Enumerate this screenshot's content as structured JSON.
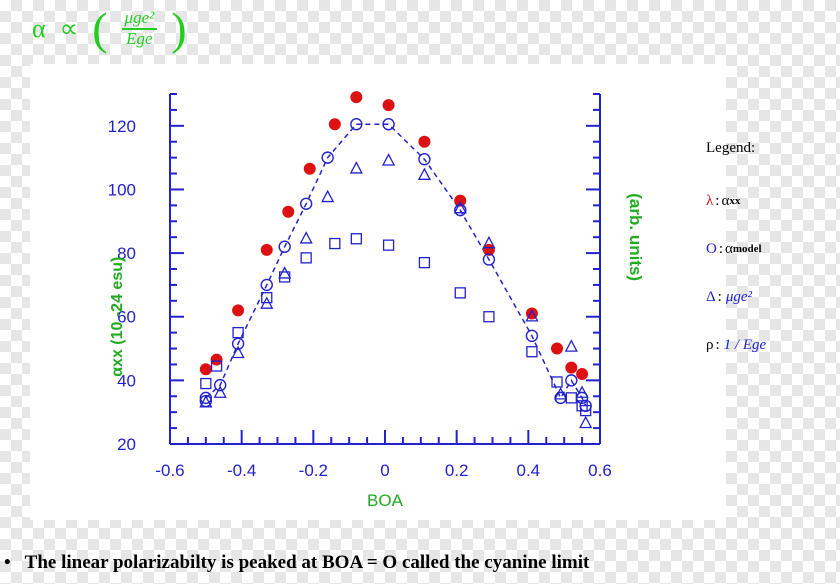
{
  "formula": {
    "lhs": "α",
    "prop": "∝",
    "numerator": "μge²",
    "denominator": "Ege"
  },
  "chart_data": {
    "type": "scatter",
    "xlabel": "BOA",
    "ylabel_left": "αxx (10  -24 esu)",
    "ylabel_right": "(arb. units)",
    "xlim": [
      -0.6,
      0.6
    ],
    "ylim": [
      20,
      130
    ],
    "xticks": [
      -0.6,
      -0.4,
      -0.2,
      0,
      0.2,
      0.4,
      0.6
    ],
    "yticks": [
      20,
      40,
      60,
      80,
      100,
      120
    ],
    "xtick_labels": [
      "-0.6",
      "-0.4",
      "-0.2",
      "0",
      "0.2",
      "0.4",
      "0.6"
    ],
    "ytick_labels": [
      "20",
      "40",
      "60",
      "80",
      "100",
      "120"
    ],
    "grid": false,
    "series": [
      {
        "name": "αxx",
        "symbol": "filled-circle",
        "color": "#dd1111",
        "points": [
          [
            -0.5,
            43.5
          ],
          [
            -0.47,
            46.5
          ],
          [
            -0.41,
            62
          ],
          [
            -0.33,
            81
          ],
          [
            -0.27,
            93
          ],
          [
            -0.21,
            106.5
          ],
          [
            -0.14,
            120.5
          ],
          [
            -0.08,
            129
          ],
          [
            0.01,
            126.5
          ],
          [
            0.11,
            115
          ],
          [
            0.21,
            96.5
          ],
          [
            0.29,
            81
          ],
          [
            0.41,
            61
          ],
          [
            0.48,
            50
          ],
          [
            0.52,
            44
          ],
          [
            0.55,
            42
          ]
        ]
      },
      {
        "name": "αmodel",
        "symbol": "open-circle",
        "color": "#2222cc",
        "line": "dashed",
        "points": [
          [
            -0.5,
            34.5
          ],
          [
            -0.5,
            33.5
          ],
          [
            -0.46,
            38.5
          ],
          [
            -0.41,
            51.5
          ],
          [
            -0.33,
            70
          ],
          [
            -0.28,
            82
          ],
          [
            -0.22,
            95.5
          ],
          [
            -0.16,
            110
          ],
          [
            -0.08,
            120.5
          ],
          [
            0.01,
            120.5
          ],
          [
            0.11,
            109.5
          ],
          [
            0.21,
            93.5
          ],
          [
            0.29,
            78
          ],
          [
            0.41,
            54
          ],
          [
            0.49,
            34.5
          ],
          [
            0.52,
            40
          ],
          [
            0.55,
            34.5
          ],
          [
            0.56,
            32
          ]
        ]
      },
      {
        "name": "μge²",
        "symbol": "open-triangle",
        "color": "#2222cc",
        "points": [
          [
            -0.5,
            33
          ],
          [
            -0.46,
            36
          ],
          [
            -0.41,
            48.5
          ],
          [
            -0.33,
            64
          ],
          [
            -0.28,
            73.5
          ],
          [
            -0.22,
            84.5
          ],
          [
            -0.16,
            97.5
          ],
          [
            -0.08,
            106.5
          ],
          [
            0.01,
            109
          ],
          [
            0.11,
            104.5
          ],
          [
            0.21,
            94
          ],
          [
            0.29,
            83
          ],
          [
            0.41,
            60
          ],
          [
            0.49,
            35.5
          ],
          [
            0.52,
            50.5
          ],
          [
            0.55,
            36
          ],
          [
            0.56,
            26.5
          ]
        ]
      },
      {
        "name": "1/Ege",
        "symbol": "open-square",
        "color": "#2222cc",
        "points": [
          [
            -0.5,
            39
          ],
          [
            -0.47,
            44.5
          ],
          [
            -0.41,
            55
          ],
          [
            -0.33,
            66
          ],
          [
            -0.28,
            72.5
          ],
          [
            -0.22,
            78.5
          ],
          [
            -0.14,
            83
          ],
          [
            -0.08,
            84.5
          ],
          [
            0.01,
            82.5
          ],
          [
            0.11,
            77
          ],
          [
            0.21,
            67.5
          ],
          [
            0.29,
            60
          ],
          [
            0.41,
            49
          ],
          [
            0.48,
            39.5
          ],
          [
            0.52,
            34.5
          ],
          [
            0.55,
            32
          ],
          [
            0.56,
            30.5
          ]
        ]
      }
    ]
  },
  "legend": {
    "title": "Legend:",
    "items": [
      {
        "key": "λ",
        "key_color": "#dd1111",
        "text": "α",
        "sub": "xx"
      },
      {
        "key": "O",
        "key_color": "#2222cc",
        "text": "α",
        "sub": "model"
      },
      {
        "key": "Δ",
        "key_color": "#2222cc",
        "text": "μge²",
        "sub": ""
      },
      {
        "key": "ρ",
        "key_color": "#000000",
        "text": "1 / Ege",
        "sub": ""
      }
    ]
  },
  "footer": {
    "bullet": "•",
    "text": "The linear polarizabilty is peaked at BOA = O called the cyanine limit"
  },
  "colors": {
    "axis": "#2222cc",
    "label_green": "#22aa22",
    "tick_label_blue": "#2222cc",
    "filled": "#dd1111"
  }
}
